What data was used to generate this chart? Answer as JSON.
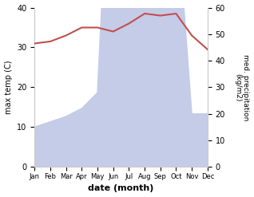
{
  "months": [
    "Jan",
    "Feb",
    "Mar",
    "Apr",
    "May",
    "Jun",
    "Jul",
    "Aug",
    "Sep",
    "Oct",
    "Nov",
    "Dec"
  ],
  "temperature": [
    31,
    31.5,
    33,
    35,
    35,
    34,
    36,
    38.5,
    38,
    38.5,
    33,
    29.5
  ],
  "precipitation": [
    15,
    17,
    19,
    22,
    28,
    150,
    220,
    180,
    120,
    100,
    20,
    20
  ],
  "temp_color": "#c0504d",
  "precip_fill_color": "#c5cce8",
  "precip_line_color": "#9aa8d0",
  "ylabel_left": "max temp (C)",
  "ylabel_right": "med. precipitation\n(kg/m2)",
  "xlabel": "date (month)",
  "ylim_left": [
    0,
    40
  ],
  "ylim_right": [
    0,
    60
  ],
  "yticks_left": [
    0,
    10,
    20,
    30,
    40
  ],
  "yticks_right": [
    0,
    10,
    20,
    30,
    40,
    50,
    60
  ]
}
